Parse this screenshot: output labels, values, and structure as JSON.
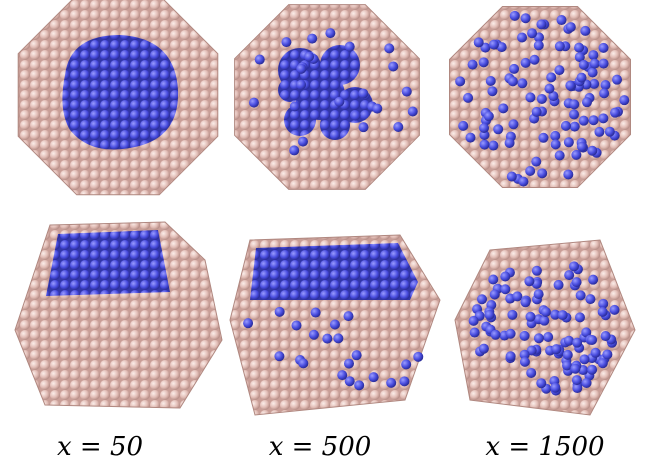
{
  "captions": [
    "x = 50",
    "x = 500",
    "x = 1500"
  ]
}
